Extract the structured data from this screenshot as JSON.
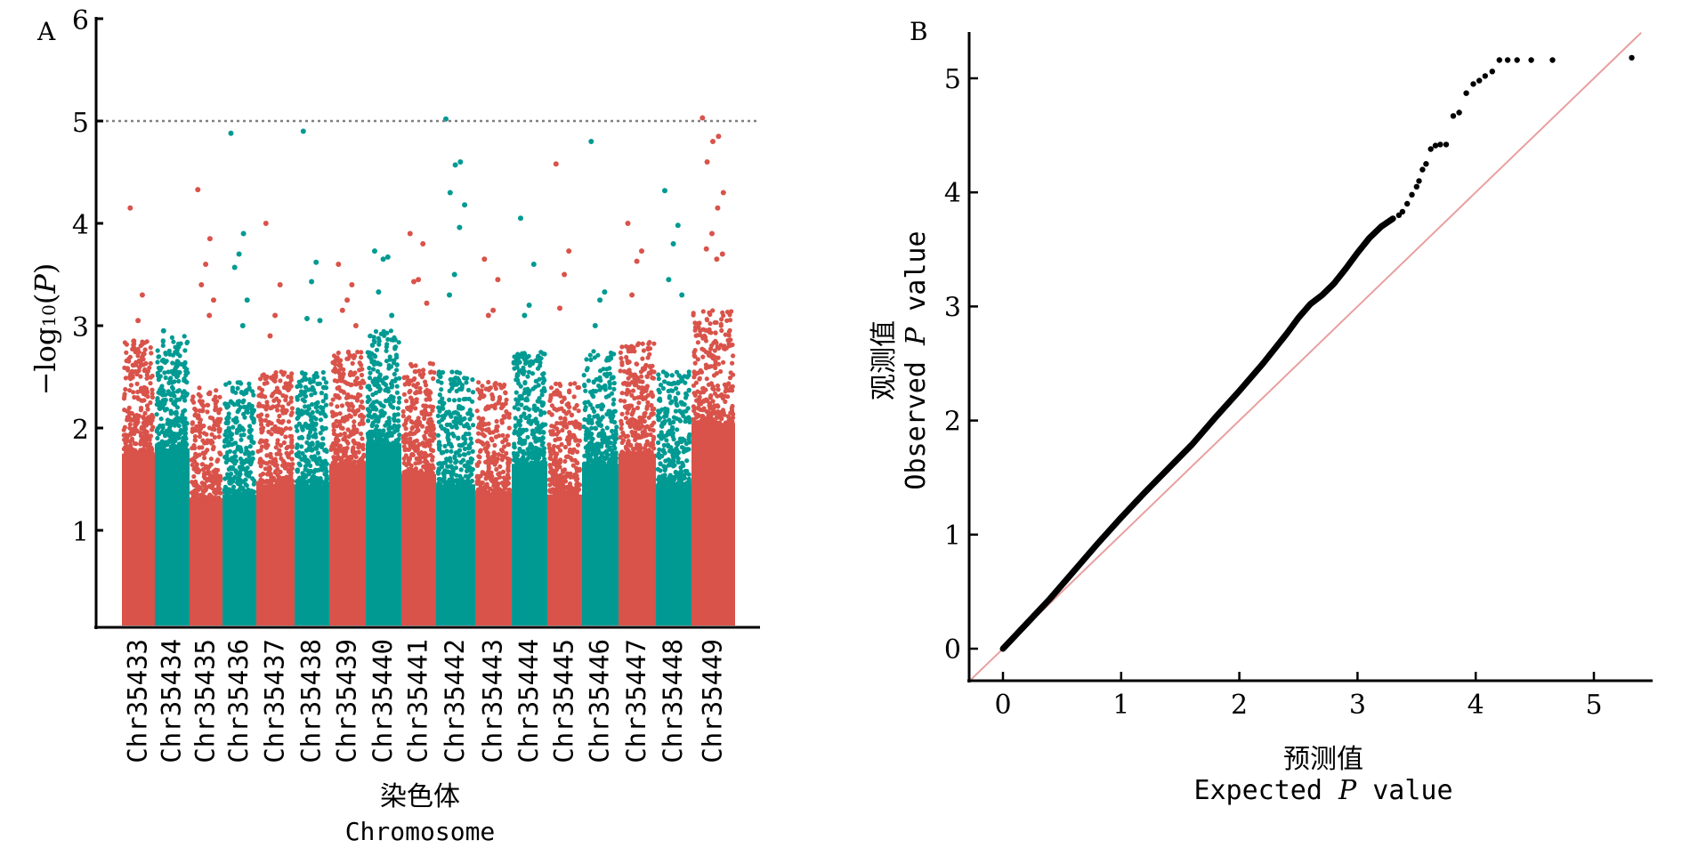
{
  "chart_data": [
    {
      "panel": "A",
      "type": "scatter",
      "subtype": "manhattan",
      "title": "",
      "xlabel_cn": "染色体",
      "xlabel": "Chromosome",
      "ylabel": "-log10(P)",
      "ylabel_parts": {
        "prefix": "−log",
        "sub": "10",
        "open": "(",
        "var": "P",
        "close": ")"
      },
      "ylim": [
        0,
        6
      ],
      "yticks": [
        1,
        2,
        3,
        4,
        5,
        6
      ],
      "threshold": 5,
      "colors": [
        "#D9534A",
        "#009A93"
      ],
      "threshold_color": "#808080",
      "categories": [
        "Chr35433",
        "Chr35434",
        "Chr35435",
        "Chr35436",
        "Chr35437",
        "Chr35438",
        "Chr35439",
        "Chr35440",
        "Chr35441",
        "Chr35442",
        "Chr35443",
        "Chr35444",
        "Chr35445",
        "Chr35446",
        "Chr35447",
        "Chr35448",
        "Chr35449"
      ],
      "dense_top": [
        2.3,
        2.35,
        1.85,
        1.9,
        2.0,
        2.0,
        2.2,
        2.4,
        2.1,
        2.0,
        1.9,
        2.2,
        1.9,
        2.2,
        2.3,
        2.0,
        2.6
      ],
      "peak_points": [
        {
          "chr": "Chr35433",
          "values": [
            4.15,
            3.3,
            3.05,
            2.85
          ]
        },
        {
          "chr": "Chr35434",
          "values": [
            2.95,
            2.6,
            2.55
          ]
        },
        {
          "chr": "Chr35435",
          "values": [
            4.33,
            3.85,
            3.6,
            3.4,
            3.25,
            3.1
          ]
        },
        {
          "chr": "Chr35436",
          "values": [
            4.88,
            3.9,
            3.7,
            3.57,
            3.25,
            3.0
          ]
        },
        {
          "chr": "Chr35437",
          "values": [
            4.0,
            3.4,
            3.1,
            2.9
          ]
        },
        {
          "chr": "Chr35438",
          "values": [
            4.9,
            3.62,
            3.43,
            3.07,
            3.05
          ]
        },
        {
          "chr": "Chr35439",
          "values": [
            3.6,
            3.4,
            3.25,
            3.15,
            3.0
          ]
        },
        {
          "chr": "Chr35440",
          "values": [
            3.73,
            3.67,
            3.65,
            3.33,
            3.1
          ]
        },
        {
          "chr": "Chr35441",
          "values": [
            3.9,
            3.8,
            3.45,
            3.43,
            3.22
          ]
        },
        {
          "chr": "Chr35442",
          "values": [
            5.02,
            4.6,
            4.57,
            4.3,
            4.18,
            3.96,
            3.5,
            3.3
          ]
        },
        {
          "chr": "Chr35443",
          "values": [
            3.65,
            3.45,
            3.15,
            3.1
          ]
        },
        {
          "chr": "Chr35444",
          "values": [
            4.05,
            3.6,
            3.2,
            3.1
          ]
        },
        {
          "chr": "Chr35445",
          "values": [
            4.58,
            3.73,
            3.5,
            3.17
          ]
        },
        {
          "chr": "Chr35446",
          "values": [
            4.8,
            3.33,
            3.25,
            3.0
          ]
        },
        {
          "chr": "Chr35447",
          "values": [
            4.0,
            3.73,
            3.63,
            3.3
          ]
        },
        {
          "chr": "Chr35448",
          "values": [
            4.32,
            3.98,
            3.8,
            3.45,
            3.3
          ]
        },
        {
          "chr": "Chr35449",
          "values": [
            5.03,
            4.85,
            4.8,
            4.6,
            4.3,
            4.15,
            3.9,
            3.75,
            3.7,
            3.65
          ]
        }
      ]
    },
    {
      "panel": "B",
      "type": "scatter",
      "subtype": "qq-plot",
      "title": "",
      "xlabel_cn": "预测值",
      "xlabel": "Expected P value",
      "xlabel_parts": {
        "pre": "Expected ",
        "var": "P",
        "post": " value"
      },
      "ylabel_cn": "观测值",
      "ylabel": "Observed P value",
      "ylabel_parts": {
        "pre": "Observed ",
        "var": "P",
        "post": " value"
      },
      "xlim": [
        -0.3,
        5.5
      ],
      "ylim": [
        -0.28,
        5.4
      ],
      "xticks": [
        0,
        1,
        2,
        3,
        4,
        5
      ],
      "yticks": [
        0,
        1,
        2,
        3,
        4,
        5
      ],
      "point_color": "#000000",
      "reference_line_color": "#E8A0A0",
      "curve": [
        [
          0.0,
          0.0
        ],
        [
          0.2,
          0.22
        ],
        [
          0.4,
          0.44
        ],
        [
          0.6,
          0.68
        ],
        [
          0.8,
          0.92
        ],
        [
          1.0,
          1.15
        ],
        [
          1.2,
          1.37
        ],
        [
          1.4,
          1.58
        ],
        [
          1.6,
          1.79
        ],
        [
          1.8,
          2.03
        ],
        [
          2.0,
          2.26
        ],
        [
          2.2,
          2.5
        ],
        [
          2.4,
          2.76
        ],
        [
          2.5,
          2.9
        ],
        [
          2.6,
          3.02
        ],
        [
          2.7,
          3.1
        ],
        [
          2.8,
          3.2
        ],
        [
          2.9,
          3.33
        ],
        [
          3.0,
          3.47
        ],
        [
          3.1,
          3.6
        ],
        [
          3.2,
          3.7
        ],
        [
          3.3,
          3.77
        ]
      ],
      "tail_points": [
        [
          3.35,
          3.8
        ],
        [
          3.38,
          3.83
        ],
        [
          3.42,
          3.9
        ],
        [
          3.46,
          3.98
        ],
        [
          3.5,
          4.05
        ],
        [
          3.52,
          4.1
        ],
        [
          3.55,
          4.2
        ],
        [
          3.58,
          4.25
        ],
        [
          3.62,
          4.38
        ],
        [
          3.66,
          4.41
        ],
        [
          3.7,
          4.42
        ],
        [
          3.75,
          4.42
        ],
        [
          3.81,
          4.67
        ],
        [
          3.86,
          4.7
        ],
        [
          3.92,
          4.87
        ],
        [
          3.98,
          4.95
        ],
        [
          4.03,
          4.98
        ],
        [
          4.08,
          5.02
        ],
        [
          4.14,
          5.06
        ],
        [
          4.2,
          5.16
        ],
        [
          4.27,
          5.16
        ],
        [
          4.35,
          5.16
        ],
        [
          4.47,
          5.16
        ],
        [
          4.65,
          5.16
        ],
        [
          5.32,
          5.18
        ]
      ]
    }
  ],
  "panels": {
    "a_label": "A",
    "b_label": "B"
  }
}
